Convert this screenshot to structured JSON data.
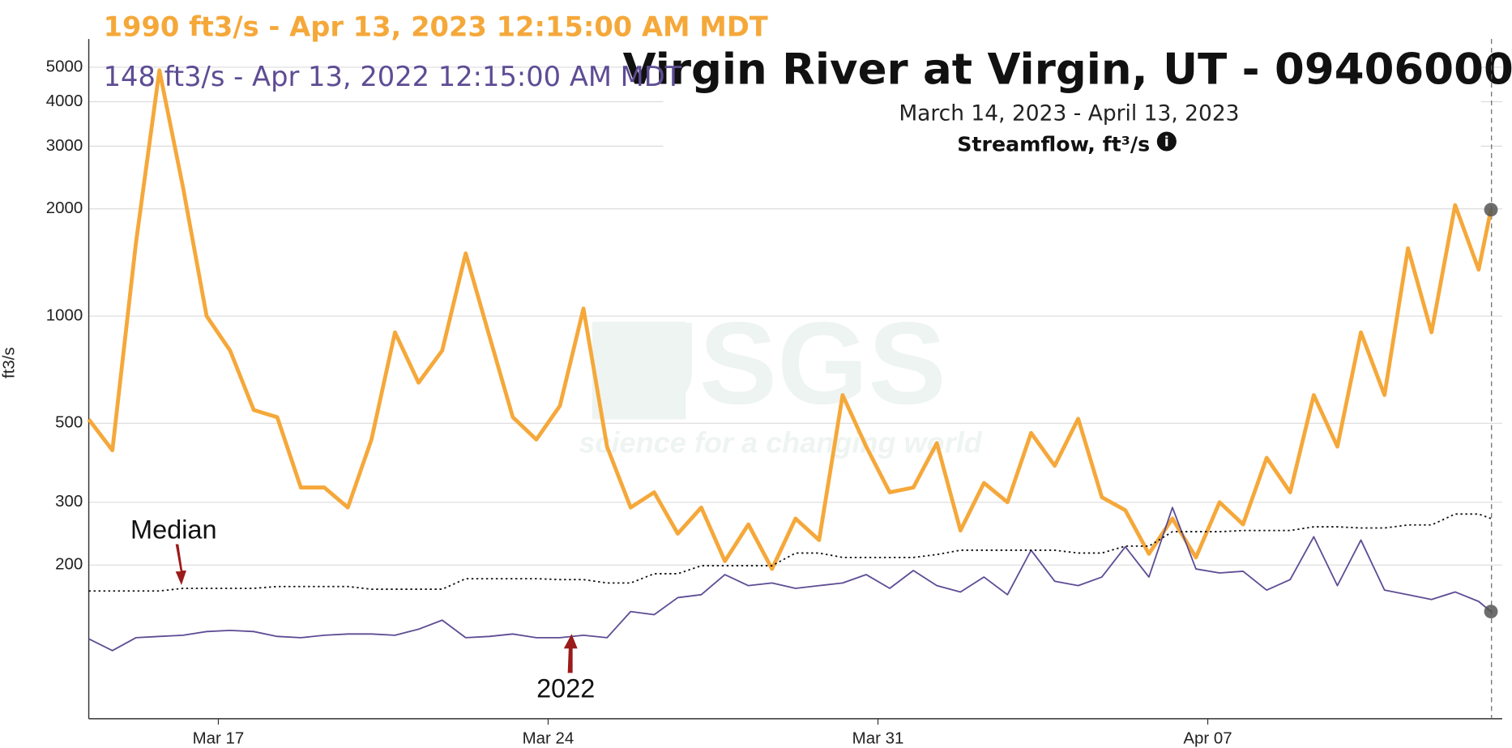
{
  "chart_data": {
    "type": "line",
    "title": "Virgin River at Virgin, UT - 09406000",
    "subtitle": "March 14, 2023 - April 13, 2023",
    "parameter": "Streamflow, ft³/s",
    "y_label": "ft3/s",
    "watermark": "USGS",
    "watermark_tagline": "science for a changing world",
    "log_scale": true,
    "grid": true,
    "ylim": [
      74,
      6000
    ],
    "yticks": [
      200,
      300,
      500,
      1000,
      2000,
      3000,
      4000,
      5000
    ],
    "xlim": [
      "2023-03-14T06:00",
      "2023-04-13T06:00"
    ],
    "xticks": [
      {
        "value": "2023-03-17T00:00",
        "label": "Mar 17"
      },
      {
        "value": "2023-03-24T00:00",
        "label": "Mar 24"
      },
      {
        "value": "2023-03-31T00:00",
        "label": "Mar 31"
      },
      {
        "value": "2023-04-07T00:00",
        "label": "Apr 07"
      }
    ],
    "x": [
      "2023-03-14T06:00",
      "2023-03-14T18:00",
      "2023-03-15T06:00",
      "2023-03-15T18:00",
      "2023-03-16T06:00",
      "2023-03-16T18:00",
      "2023-03-17T06:00",
      "2023-03-17T18:00",
      "2023-03-18T06:00",
      "2023-03-18T18:00",
      "2023-03-19T06:00",
      "2023-03-19T18:00",
      "2023-03-20T06:00",
      "2023-03-20T18:00",
      "2023-03-21T06:00",
      "2023-03-21T18:00",
      "2023-03-22T06:00",
      "2023-03-22T18:00",
      "2023-03-23T06:00",
      "2023-03-23T18:00",
      "2023-03-24T06:00",
      "2023-03-24T18:00",
      "2023-03-25T06:00",
      "2023-03-25T18:00",
      "2023-03-26T06:00",
      "2023-03-26T18:00",
      "2023-03-27T06:00",
      "2023-03-27T18:00",
      "2023-03-28T06:00",
      "2023-03-28T18:00",
      "2023-03-29T06:00",
      "2023-03-29T18:00",
      "2023-03-30T06:00",
      "2023-03-30T18:00",
      "2023-03-31T06:00",
      "2023-03-31T18:00",
      "2023-04-01T06:00",
      "2023-04-01T18:00",
      "2023-04-02T06:00",
      "2023-04-02T18:00",
      "2023-04-03T06:00",
      "2023-04-03T18:00",
      "2023-04-04T06:00",
      "2023-04-04T18:00",
      "2023-04-05T06:00",
      "2023-04-05T18:00",
      "2023-04-06T06:00",
      "2023-04-06T18:00",
      "2023-04-07T06:00",
      "2023-04-07T18:00",
      "2023-04-08T06:00",
      "2023-04-08T18:00",
      "2023-04-09T06:00",
      "2023-04-09T18:00",
      "2023-04-10T06:00",
      "2023-04-10T18:00",
      "2023-04-11T06:00",
      "2023-04-11T18:00",
      "2023-04-12T06:00",
      "2023-04-12T18:00",
      "2023-04-13T00:15"
    ],
    "series": [
      {
        "color": "#f5a83a",
        "width": 4,
        "readout": "1990 ft3/s - Apr 13, 2023 12:15:00 AM MDT",
        "values": [
          513,
          420,
          1600,
          4900,
          2300,
          1000,
          800,
          545,
          520,
          330,
          330,
          290,
          450,
          900,
          650,
          800,
          1500,
          880,
          520,
          450,
          560,
          1050,
          430,
          290,
          320,
          245,
          290,
          205,
          260,
          195,
          270,
          235,
          600,
          430,
          320,
          330,
          440,
          250,
          340,
          300,
          470,
          380,
          515,
          310,
          285,
          215,
          270,
          210,
          300,
          260,
          400,
          320,
          600,
          430,
          900,
          600,
          1550,
          900,
          2050,
          1350,
          1990
        ]
      },
      {
        "name": "2022",
        "color": "#5e4c94",
        "width": 1.5,
        "readout": "148 ft3/s - Apr 13, 2022 12:15:00 AM MDT",
        "values": [
          124,
          115,
          125,
          126,
          127,
          130,
          131,
          130,
          126,
          125,
          127,
          128,
          128,
          127,
          132,
          140,
          125,
          126,
          128,
          125,
          125,
          127,
          125,
          148,
          145,
          162,
          165,
          188,
          175,
          178,
          172,
          175,
          178,
          188,
          172,
          193,
          175,
          168,
          185,
          165,
          220,
          180,
          175,
          185,
          225,
          185,
          290,
          195,
          190,
          192,
          170,
          182,
          240,
          175,
          235,
          170,
          165,
          160,
          168,
          158,
          148
        ]
      },
      {
        "name": "Median",
        "color": "#111111",
        "width": 1.5,
        "dashed": true,
        "values": [
          169,
          169,
          169,
          169,
          172,
          172,
          172,
          172,
          174,
          174,
          174,
          174,
          171,
          171,
          171,
          171,
          183,
          183,
          183,
          183,
          182,
          182,
          178,
          178,
          189,
          189,
          199,
          199,
          199,
          199,
          216,
          216,
          210,
          210,
          210,
          210,
          214,
          220,
          220,
          220,
          220,
          220,
          216,
          216,
          226,
          226,
          248,
          248,
          248,
          250,
          250,
          250,
          256,
          256,
          254,
          254,
          259,
          259,
          278,
          278,
          270
        ]
      }
    ]
  }
}
